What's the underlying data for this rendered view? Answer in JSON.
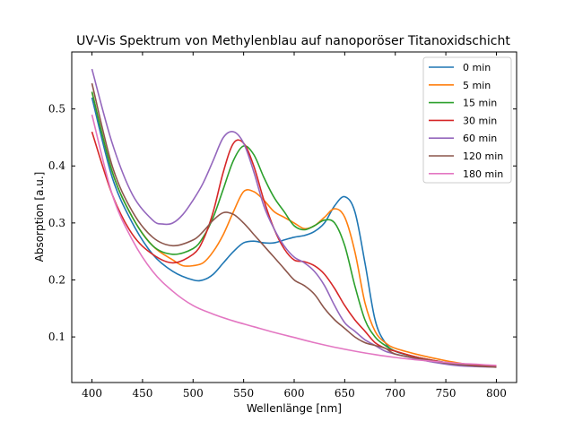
{
  "chart_data": {
    "type": "line",
    "title": "UV-Vis Spektrum von Methylenblau auf nanoporöser Titanoxidschicht",
    "xlabel": "Wellenlänge [nm]",
    "ylabel": "Absorption [a.u.]",
    "xlim": [
      380,
      820
    ],
    "ylim": [
      0.02,
      0.6
    ],
    "xticks": [
      400,
      450,
      500,
      550,
      600,
      650,
      700,
      750,
      800
    ],
    "yticks": [
      0.1,
      0.2,
      0.3,
      0.4,
      0.5
    ],
    "grid": false,
    "legend_position": "top-right",
    "series": [
      {
        "name": "0 min",
        "color": "#1f77b4",
        "x": [
          400,
          420,
          440,
          460,
          480,
          500,
          510,
          520,
          530,
          540,
          550,
          560,
          570,
          580,
          590,
          600,
          610,
          620,
          630,
          640,
          650,
          660,
          670,
          680,
          690,
          700,
          720,
          740,
          760,
          780,
          800
        ],
        "y": [
          0.52,
          0.38,
          0.3,
          0.245,
          0.215,
          0.2,
          0.2,
          0.21,
          0.23,
          0.25,
          0.265,
          0.268,
          0.265,
          0.265,
          0.27,
          0.275,
          0.278,
          0.285,
          0.3,
          0.33,
          0.346,
          0.32,
          0.23,
          0.13,
          0.09,
          0.075,
          0.065,
          0.058,
          0.053,
          0.05,
          0.048
        ]
      },
      {
        "name": "5 min",
        "color": "#ff7f0e",
        "x": [
          400,
          420,
          440,
          460,
          480,
          490,
          500,
          510,
          520,
          530,
          540,
          550,
          560,
          570,
          580,
          590,
          600,
          610,
          620,
          630,
          640,
          650,
          660,
          670,
          680,
          690,
          700,
          720,
          740,
          760,
          780,
          800
        ],
        "y": [
          0.53,
          0.39,
          0.31,
          0.26,
          0.235,
          0.225,
          0.225,
          0.23,
          0.25,
          0.28,
          0.32,
          0.355,
          0.355,
          0.34,
          0.32,
          0.31,
          0.3,
          0.29,
          0.295,
          0.31,
          0.325,
          0.31,
          0.25,
          0.16,
          0.11,
          0.09,
          0.08,
          0.07,
          0.062,
          0.055,
          0.05,
          0.048
        ]
      },
      {
        "name": "15 min",
        "color": "#2ca02c",
        "x": [
          400,
          420,
          440,
          460,
          480,
          500,
          510,
          520,
          530,
          540,
          550,
          560,
          570,
          580,
          590,
          600,
          610,
          620,
          630,
          640,
          650,
          660,
          670,
          680,
          690,
          700,
          720,
          740,
          760,
          780,
          800
        ],
        "y": [
          0.53,
          0.39,
          0.31,
          0.26,
          0.245,
          0.255,
          0.275,
          0.31,
          0.36,
          0.41,
          0.435,
          0.42,
          0.38,
          0.345,
          0.32,
          0.295,
          0.288,
          0.295,
          0.305,
          0.3,
          0.26,
          0.19,
          0.13,
          0.1,
          0.085,
          0.075,
          0.065,
          0.058,
          0.052,
          0.05,
          0.048
        ]
      },
      {
        "name": "30 min",
        "color": "#d62728",
        "x": [
          400,
          420,
          440,
          460,
          480,
          500,
          510,
          520,
          530,
          540,
          550,
          560,
          570,
          580,
          590,
          600,
          610,
          620,
          630,
          640,
          650,
          660,
          670,
          680,
          690,
          700,
          720,
          740,
          760,
          780,
          800
        ],
        "y": [
          0.46,
          0.35,
          0.28,
          0.245,
          0.23,
          0.245,
          0.27,
          0.32,
          0.39,
          0.44,
          0.44,
          0.4,
          0.34,
          0.29,
          0.255,
          0.235,
          0.232,
          0.225,
          0.21,
          0.185,
          0.155,
          0.13,
          0.11,
          0.09,
          0.08,
          0.075,
          0.065,
          0.058,
          0.052,
          0.05,
          0.048
        ]
      },
      {
        "name": "60 min",
        "color": "#9467bd",
        "x": [
          400,
          420,
          440,
          460,
          470,
          480,
          490,
          500,
          510,
          520,
          530,
          540,
          550,
          560,
          570,
          580,
          590,
          600,
          610,
          620,
          630,
          640,
          650,
          660,
          670,
          680,
          690,
          700,
          720,
          740,
          760,
          780,
          800
        ],
        "y": [
          0.57,
          0.44,
          0.35,
          0.305,
          0.298,
          0.3,
          0.315,
          0.34,
          0.37,
          0.41,
          0.45,
          0.46,
          0.44,
          0.39,
          0.33,
          0.29,
          0.26,
          0.24,
          0.23,
          0.215,
          0.19,
          0.155,
          0.125,
          0.11,
          0.095,
          0.085,
          0.075,
          0.07,
          0.062,
          0.055,
          0.05,
          0.048,
          0.047
        ]
      },
      {
        "name": "120 min",
        "color": "#8c564b",
        "x": [
          400,
          420,
          440,
          460,
          480,
          500,
          510,
          520,
          530,
          540,
          550,
          560,
          570,
          580,
          590,
          600,
          610,
          620,
          630,
          640,
          650,
          660,
          670,
          680,
          690,
          700,
          720,
          740,
          760,
          780,
          800
        ],
        "y": [
          0.545,
          0.4,
          0.32,
          0.275,
          0.26,
          0.27,
          0.285,
          0.305,
          0.318,
          0.315,
          0.3,
          0.28,
          0.26,
          0.24,
          0.22,
          0.2,
          0.19,
          0.175,
          0.15,
          0.13,
          0.115,
          0.1,
          0.09,
          0.085,
          0.08,
          0.07,
          0.063,
          0.057,
          0.052,
          0.049,
          0.047
        ]
      },
      {
        "name": "180 min",
        "color": "#e377c2",
        "x": [
          400,
          420,
          440,
          460,
          480,
          500,
          520,
          540,
          560,
          580,
          600,
          620,
          640,
          660,
          680,
          700,
          720,
          740,
          760,
          780,
          800
        ],
        "y": [
          0.49,
          0.35,
          0.27,
          0.215,
          0.18,
          0.155,
          0.14,
          0.128,
          0.118,
          0.108,
          0.099,
          0.09,
          0.082,
          0.075,
          0.069,
          0.064,
          0.06,
          0.057,
          0.054,
          0.052,
          0.05
        ]
      }
    ]
  }
}
